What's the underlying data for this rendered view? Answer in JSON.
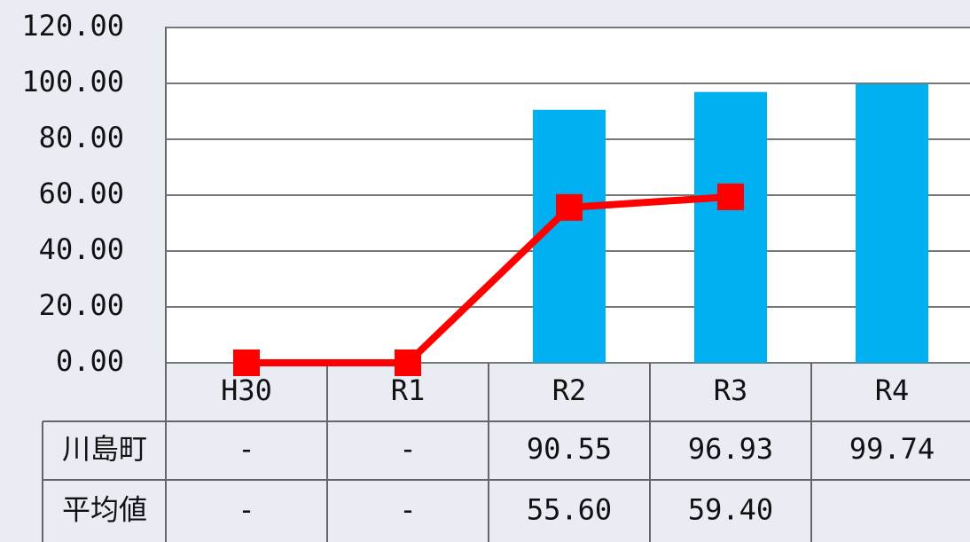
{
  "chart_data": {
    "type": "bar",
    "categories": [
      "H30",
      "R1",
      "R2",
      "R3",
      "R4"
    ],
    "series": [
      {
        "name": "川島町",
        "type": "bar",
        "color": "#00b0f0",
        "values": [
          0,
          0,
          90.55,
          96.93,
          99.74
        ],
        "value_labels": [
          "-",
          "-",
          "90.55",
          "96.93",
          "99.74"
        ]
      },
      {
        "name": "平均値",
        "type": "line",
        "color": "#ff0000",
        "values": [
          0,
          0,
          55.6,
          59.4,
          null
        ],
        "value_labels": [
          "-",
          "-",
          "55.60",
          "59.40",
          null
        ]
      }
    ],
    "ylim": [
      0,
      120
    ],
    "yticks": [
      {
        "value": 0,
        "label": "0.00"
      },
      {
        "value": 20,
        "label": "20.00"
      },
      {
        "value": 40,
        "label": "40.00"
      },
      {
        "value": 60,
        "label": "60.00"
      },
      {
        "value": 80,
        "label": "80.00"
      },
      {
        "value": 100,
        "label": "100.00"
      },
      {
        "value": 120,
        "label": "120.00"
      }
    ],
    "grid": true
  }
}
